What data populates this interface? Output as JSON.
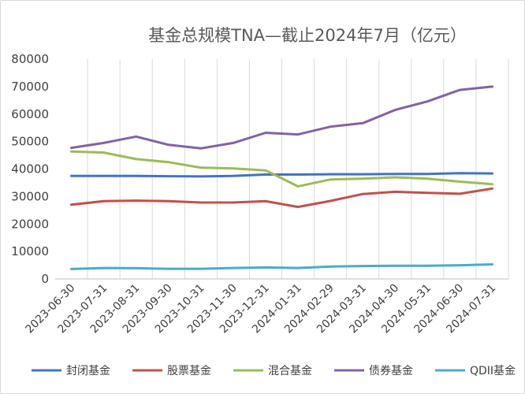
{
  "chart_data": {
    "type": "line",
    "title": "基金总规模TNA—截止2024年7月（亿元）",
    "xlabel": "",
    "ylabel": "",
    "ylim": [
      0,
      80000
    ],
    "yticks": [
      "0",
      "10000",
      "20000",
      "30000",
      "40000",
      "50000",
      "60000",
      "70000",
      "80000"
    ],
    "grid": "vertical",
    "legend_position": "bottom",
    "categories": [
      "2023-06-30",
      "2023-07-31",
      "2023-08-31",
      "2023-09-30",
      "2023-10-31",
      "2023-11-30",
      "2023-12-31",
      "2024-01-31",
      "2024-02-29",
      "2024-03-31",
      "2024-04-30",
      "2024-05-31",
      "2024-06-30",
      "2024-07-31"
    ],
    "series": [
      {
        "name": "封闭基金",
        "color": "#4472c4",
        "values": [
          37500,
          37500,
          37500,
          37400,
          37300,
          37500,
          38000,
          38000,
          38100,
          38100,
          38200,
          38200,
          38500,
          38400
        ]
      },
      {
        "name": "股票基金",
        "color": "#c0504d",
        "values": [
          27000,
          28300,
          28500,
          28300,
          27800,
          27800,
          28300,
          26200,
          28400,
          30900,
          31700,
          31300,
          31000,
          32900
        ]
      },
      {
        "name": "混合基金",
        "color": "#9bbb59",
        "values": [
          46400,
          46000,
          43600,
          42500,
          40500,
          40200,
          39500,
          33700,
          36200,
          36500,
          37000,
          36500,
          35400,
          34500
        ]
      },
      {
        "name": "债券基金",
        "color": "#8064a2",
        "values": [
          47700,
          49500,
          51800,
          48800,
          47500,
          49500,
          53200,
          52600,
          55400,
          56700,
          61500,
          64600,
          68800,
          70000
        ]
      },
      {
        "name": "QDII基金",
        "color": "#4bacc6",
        "values": [
          3600,
          4000,
          3900,
          3700,
          3700,
          4000,
          4200,
          4000,
          4500,
          4700,
          4800,
          4800,
          5000,
          5300
        ]
      }
    ]
  }
}
